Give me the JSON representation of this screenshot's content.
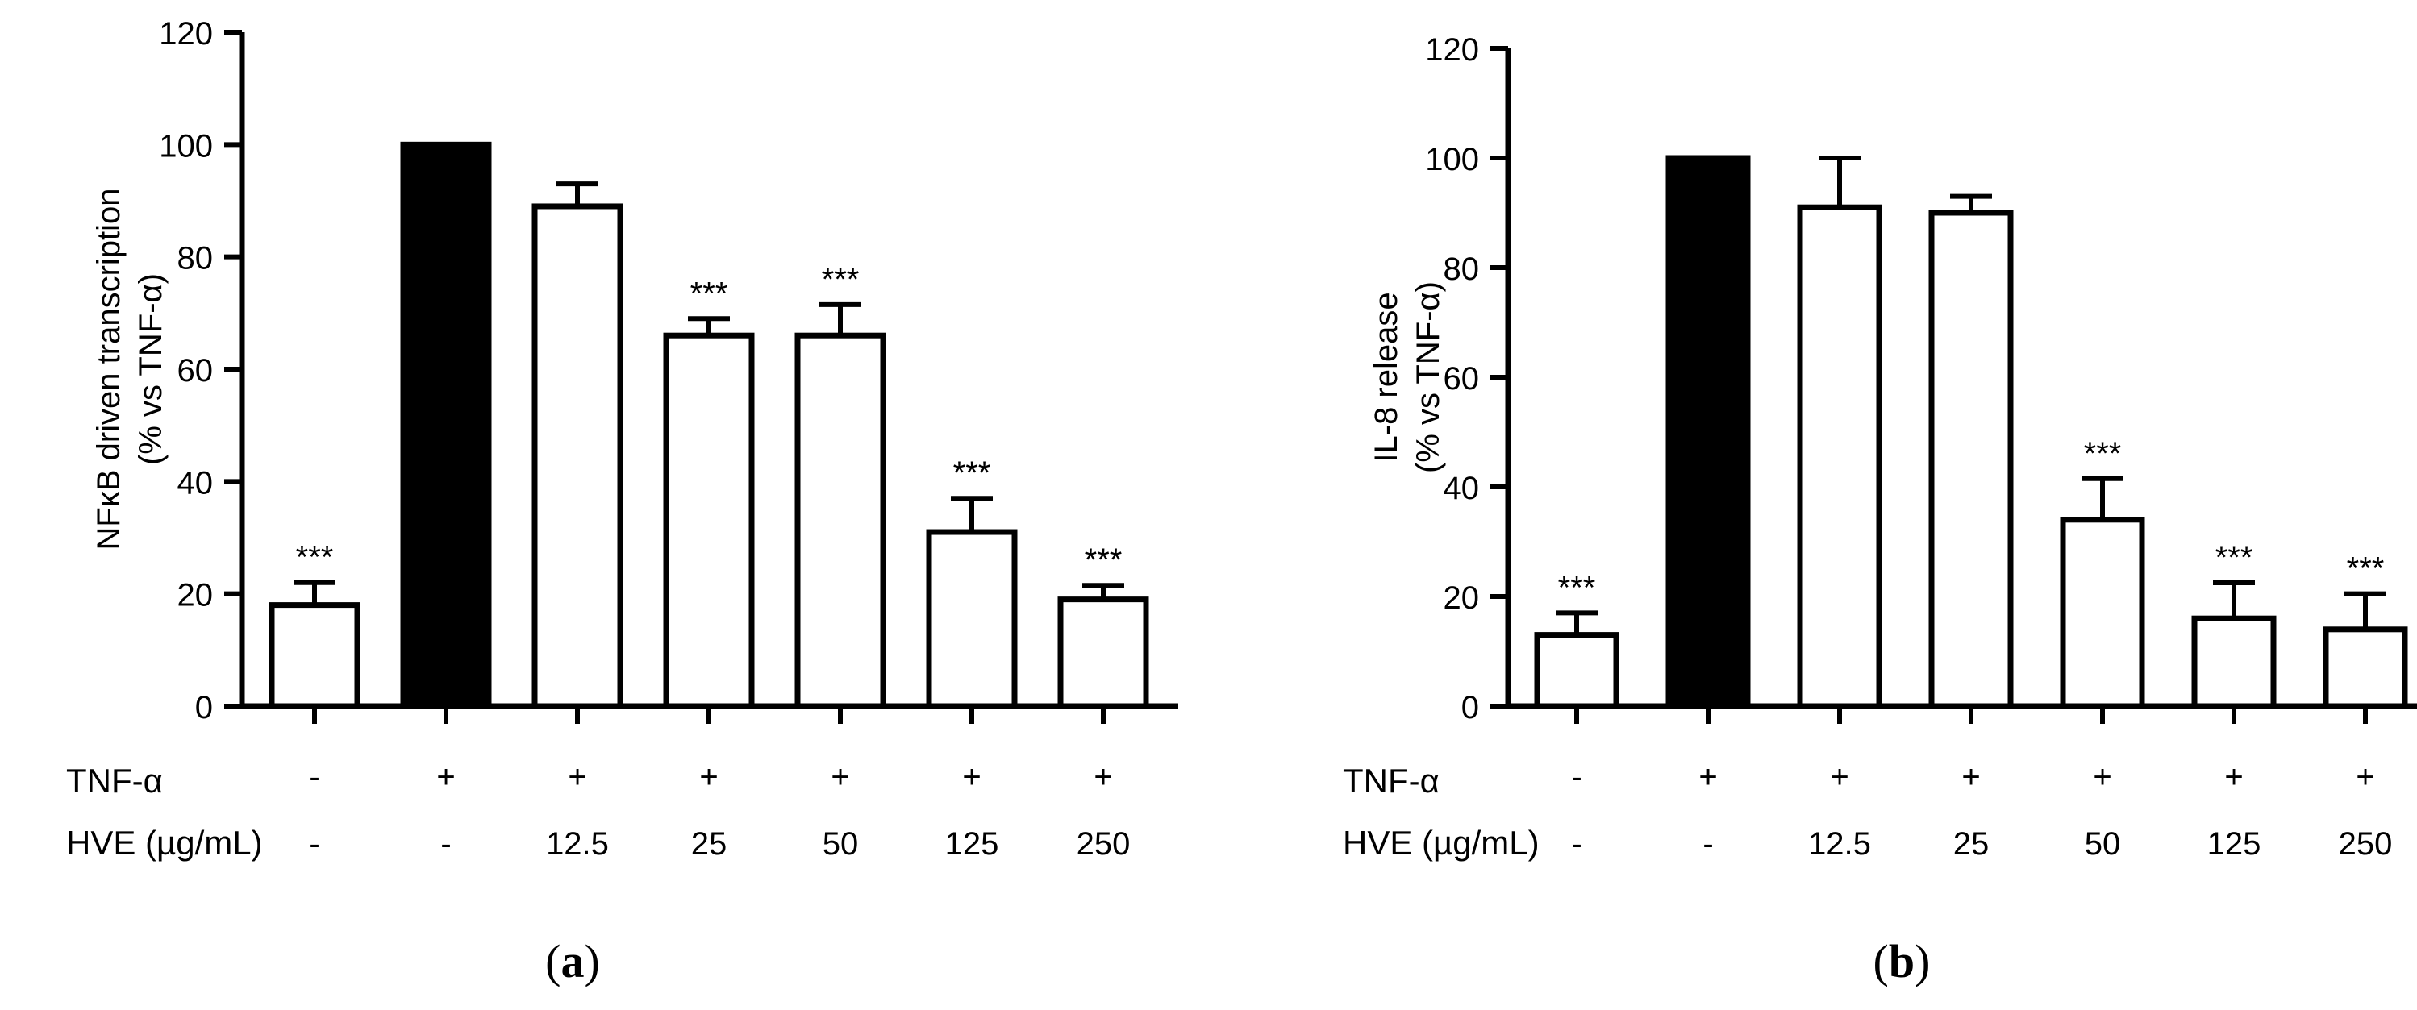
{
  "chart_data": [
    {
      "type": "bar",
      "panel": "a",
      "panel_label": "a",
      "ylabel_line1": "NFκB driven transcription",
      "ylabel_line2": "(% vs TNF-α)",
      "ylim": [
        0,
        120
      ],
      "yticks": [
        "0",
        "20",
        "40",
        "60",
        "80",
        "100",
        "120"
      ],
      "values": [
        18,
        100,
        89,
        66,
        66,
        31,
        19
      ],
      "errors": [
        4,
        0,
        4,
        3,
        5.5,
        6,
        2.5
      ],
      "fills": [
        "white",
        "black",
        "white",
        "white",
        "white",
        "white",
        "white"
      ],
      "significance": [
        "***",
        "",
        "",
        "***",
        "***",
        "***",
        "***"
      ],
      "row_labels": [
        "TNF-α",
        "HVE (µg/mL)"
      ],
      "tnf_row": [
        "-",
        "+",
        "+",
        "+",
        "+",
        "+",
        "+"
      ],
      "hve_row": [
        "-",
        "-",
        "12.5",
        "25",
        "50",
        "125",
        "250"
      ]
    },
    {
      "type": "bar",
      "panel": "b",
      "panel_label": "b",
      "ylabel_line1": "IL-8 release",
      "ylabel_line2": "(% vs TNF-α)",
      "ylim": [
        0,
        120
      ],
      "yticks": [
        "0",
        "20",
        "40",
        "60",
        "80",
        "100",
        "120"
      ],
      "values": [
        13,
        100,
        91,
        90,
        34,
        16,
        14
      ],
      "errors": [
        4,
        0,
        9,
        3,
        7.5,
        6.5,
        6.5
      ],
      "fills": [
        "white",
        "black",
        "white",
        "white",
        "white",
        "white",
        "white"
      ],
      "significance": [
        "***",
        "",
        "",
        "",
        "***",
        "***",
        "***"
      ],
      "row_labels": [
        "TNF-α",
        "HVE (µg/mL)"
      ],
      "tnf_row": [
        "-",
        "+",
        "+",
        "+",
        "+",
        "+",
        "+"
      ],
      "hve_row": [
        "-",
        "-",
        "12.5",
        "25",
        "50",
        "125",
        "250"
      ]
    }
  ]
}
